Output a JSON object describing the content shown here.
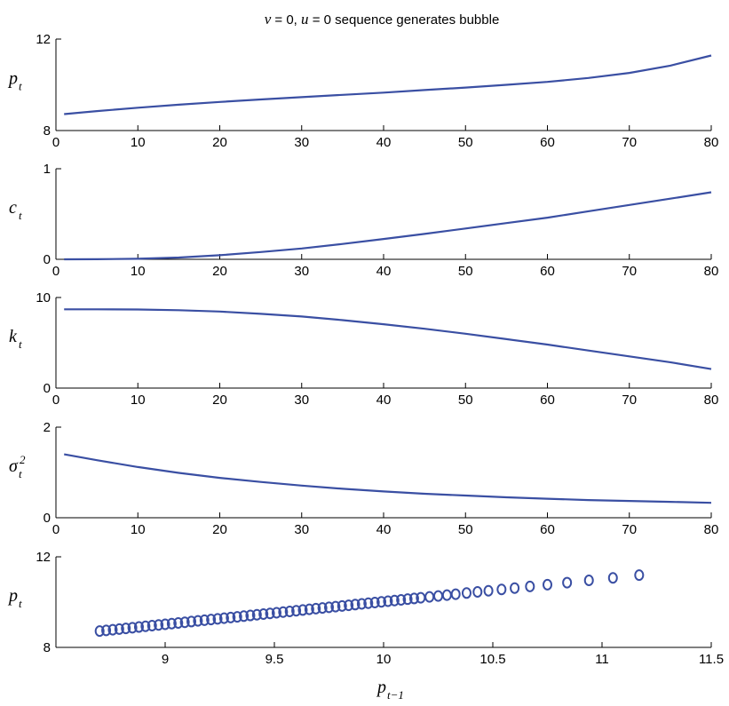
{
  "figure": {
    "title_segments": [
      {
        "text": "v",
        "italic": true
      },
      {
        "text": " = 0, ",
        "italic": false
      },
      {
        "text": "u",
        "italic": true
      },
      {
        "text": " = 0 sequence generates bubble",
        "italic": false
      }
    ],
    "series_color": "#3a4fa3",
    "axis_color": "#000000"
  },
  "chart_data": [
    {
      "type": "line",
      "ylabel": "p",
      "ylabel_sub": "t",
      "ylabel_sup": "",
      "xlim": [
        0,
        80
      ],
      "ylim": [
        8,
        12
      ],
      "xticks": [
        0,
        10,
        20,
        30,
        40,
        50,
        60,
        70,
        80
      ],
      "yticks": [
        8,
        12
      ],
      "grid": false,
      "x": [
        1,
        5,
        10,
        15,
        20,
        25,
        30,
        35,
        40,
        45,
        50,
        55,
        60,
        65,
        70,
        75,
        80
      ],
      "series": [
        {
          "values": [
            8.72,
            8.85,
            9.0,
            9.13,
            9.25,
            9.36,
            9.46,
            9.56,
            9.66,
            9.77,
            9.88,
            10.0,
            10.13,
            10.3,
            10.52,
            10.84,
            11.28
          ]
        }
      ]
    },
    {
      "type": "line",
      "ylabel": "c",
      "ylabel_sub": "t",
      "ylabel_sup": "",
      "xlim": [
        0,
        80
      ],
      "ylim": [
        0,
        1
      ],
      "xticks": [
        0,
        10,
        20,
        30,
        40,
        50,
        60,
        70,
        80
      ],
      "yticks": [
        0,
        1
      ],
      "grid": false,
      "x": [
        1,
        5,
        10,
        15,
        20,
        25,
        30,
        35,
        40,
        45,
        50,
        55,
        60,
        65,
        70,
        75,
        80
      ],
      "series": [
        {
          "values": [
            0.0,
            0.001,
            0.006,
            0.02,
            0.045,
            0.08,
            0.12,
            0.17,
            0.225,
            0.28,
            0.34,
            0.4,
            0.46,
            0.53,
            0.6,
            0.67,
            0.74
          ]
        }
      ]
    },
    {
      "type": "line",
      "ylabel": "k",
      "ylabel_sub": "t",
      "ylabel_sup": "",
      "xlim": [
        0,
        80
      ],
      "ylim": [
        0,
        10
      ],
      "xticks": [
        0,
        10,
        20,
        30,
        40,
        50,
        60,
        70,
        80
      ],
      "yticks": [
        0,
        10
      ],
      "grid": false,
      "x": [
        1,
        5,
        10,
        15,
        20,
        25,
        30,
        35,
        40,
        45,
        50,
        55,
        60,
        65,
        70,
        75,
        80
      ],
      "series": [
        {
          "values": [
            8.7,
            8.7,
            8.68,
            8.6,
            8.45,
            8.2,
            7.9,
            7.5,
            7.05,
            6.55,
            6.0,
            5.4,
            4.8,
            4.15,
            3.5,
            2.85,
            2.1
          ]
        }
      ]
    },
    {
      "type": "line",
      "ylabel": "σ",
      "ylabel_sub": "t",
      "ylabel_sup": "2",
      "xlim": [
        0,
        80
      ],
      "ylim": [
        0,
        2
      ],
      "xticks": [
        0,
        10,
        20,
        30,
        40,
        50,
        60,
        70,
        80
      ],
      "yticks": [
        0,
        2
      ],
      "grid": false,
      "x": [
        1,
        5,
        10,
        15,
        20,
        25,
        30,
        35,
        40,
        45,
        50,
        55,
        60,
        65,
        70,
        75,
        80
      ],
      "series": [
        {
          "values": [
            1.4,
            1.27,
            1.12,
            0.99,
            0.88,
            0.79,
            0.71,
            0.64,
            0.58,
            0.53,
            0.49,
            0.45,
            0.42,
            0.39,
            0.37,
            0.35,
            0.33
          ]
        }
      ]
    },
    {
      "type": "scatter",
      "ylabel": "p",
      "ylabel_sub": "t",
      "ylabel_sup": "",
      "xlabel": "p",
      "xlabel_sub": "t−1",
      "xlim": [
        8.5,
        11.5
      ],
      "ylim": [
        8,
        12
      ],
      "xticks": [
        9,
        9.5,
        10,
        10.5,
        11,
        11.5
      ],
      "yticks": [
        8,
        12
      ],
      "grid": false,
      "points_x": [
        8.7,
        8.73,
        8.76,
        8.79,
        8.82,
        8.85,
        8.88,
        8.91,
        8.94,
        8.97,
        9.0,
        9.03,
        9.06,
        9.09,
        9.12,
        9.15,
        9.18,
        9.21,
        9.24,
        9.27,
        9.3,
        9.33,
        9.36,
        9.39,
        9.42,
        9.45,
        9.48,
        9.51,
        9.54,
        9.57,
        9.6,
        9.63,
        9.66,
        9.69,
        9.72,
        9.75,
        9.78,
        9.81,
        9.84,
        9.87,
        9.9,
        9.93,
        9.96,
        9.99,
        10.02,
        10.05,
        10.08,
        10.11,
        10.14,
        10.17,
        10.21,
        10.25,
        10.29,
        10.33,
        10.38,
        10.43,
        10.48,
        10.54,
        10.6,
        10.67,
        10.75,
        10.84,
        10.94,
        11.05,
        11.17
      ],
      "points_y": [
        8.72,
        8.75,
        8.78,
        8.81,
        8.84,
        8.87,
        8.9,
        8.93,
        8.96,
        8.99,
        9.02,
        9.05,
        9.08,
        9.11,
        9.14,
        9.17,
        9.2,
        9.23,
        9.26,
        9.29,
        9.32,
        9.35,
        9.38,
        9.41,
        9.44,
        9.47,
        9.5,
        9.53,
        9.56,
        9.59,
        9.62,
        9.65,
        9.68,
        9.71,
        9.74,
        9.77,
        9.8,
        9.83,
        9.86,
        9.89,
        9.92,
        9.95,
        9.98,
        10.01,
        10.04,
        10.07,
        10.1,
        10.13,
        10.16,
        10.19,
        10.23,
        10.27,
        10.31,
        10.35,
        10.4,
        10.45,
        10.5,
        10.56,
        10.62,
        10.69,
        10.77,
        10.86,
        10.96,
        11.07,
        11.19
      ]
    }
  ]
}
